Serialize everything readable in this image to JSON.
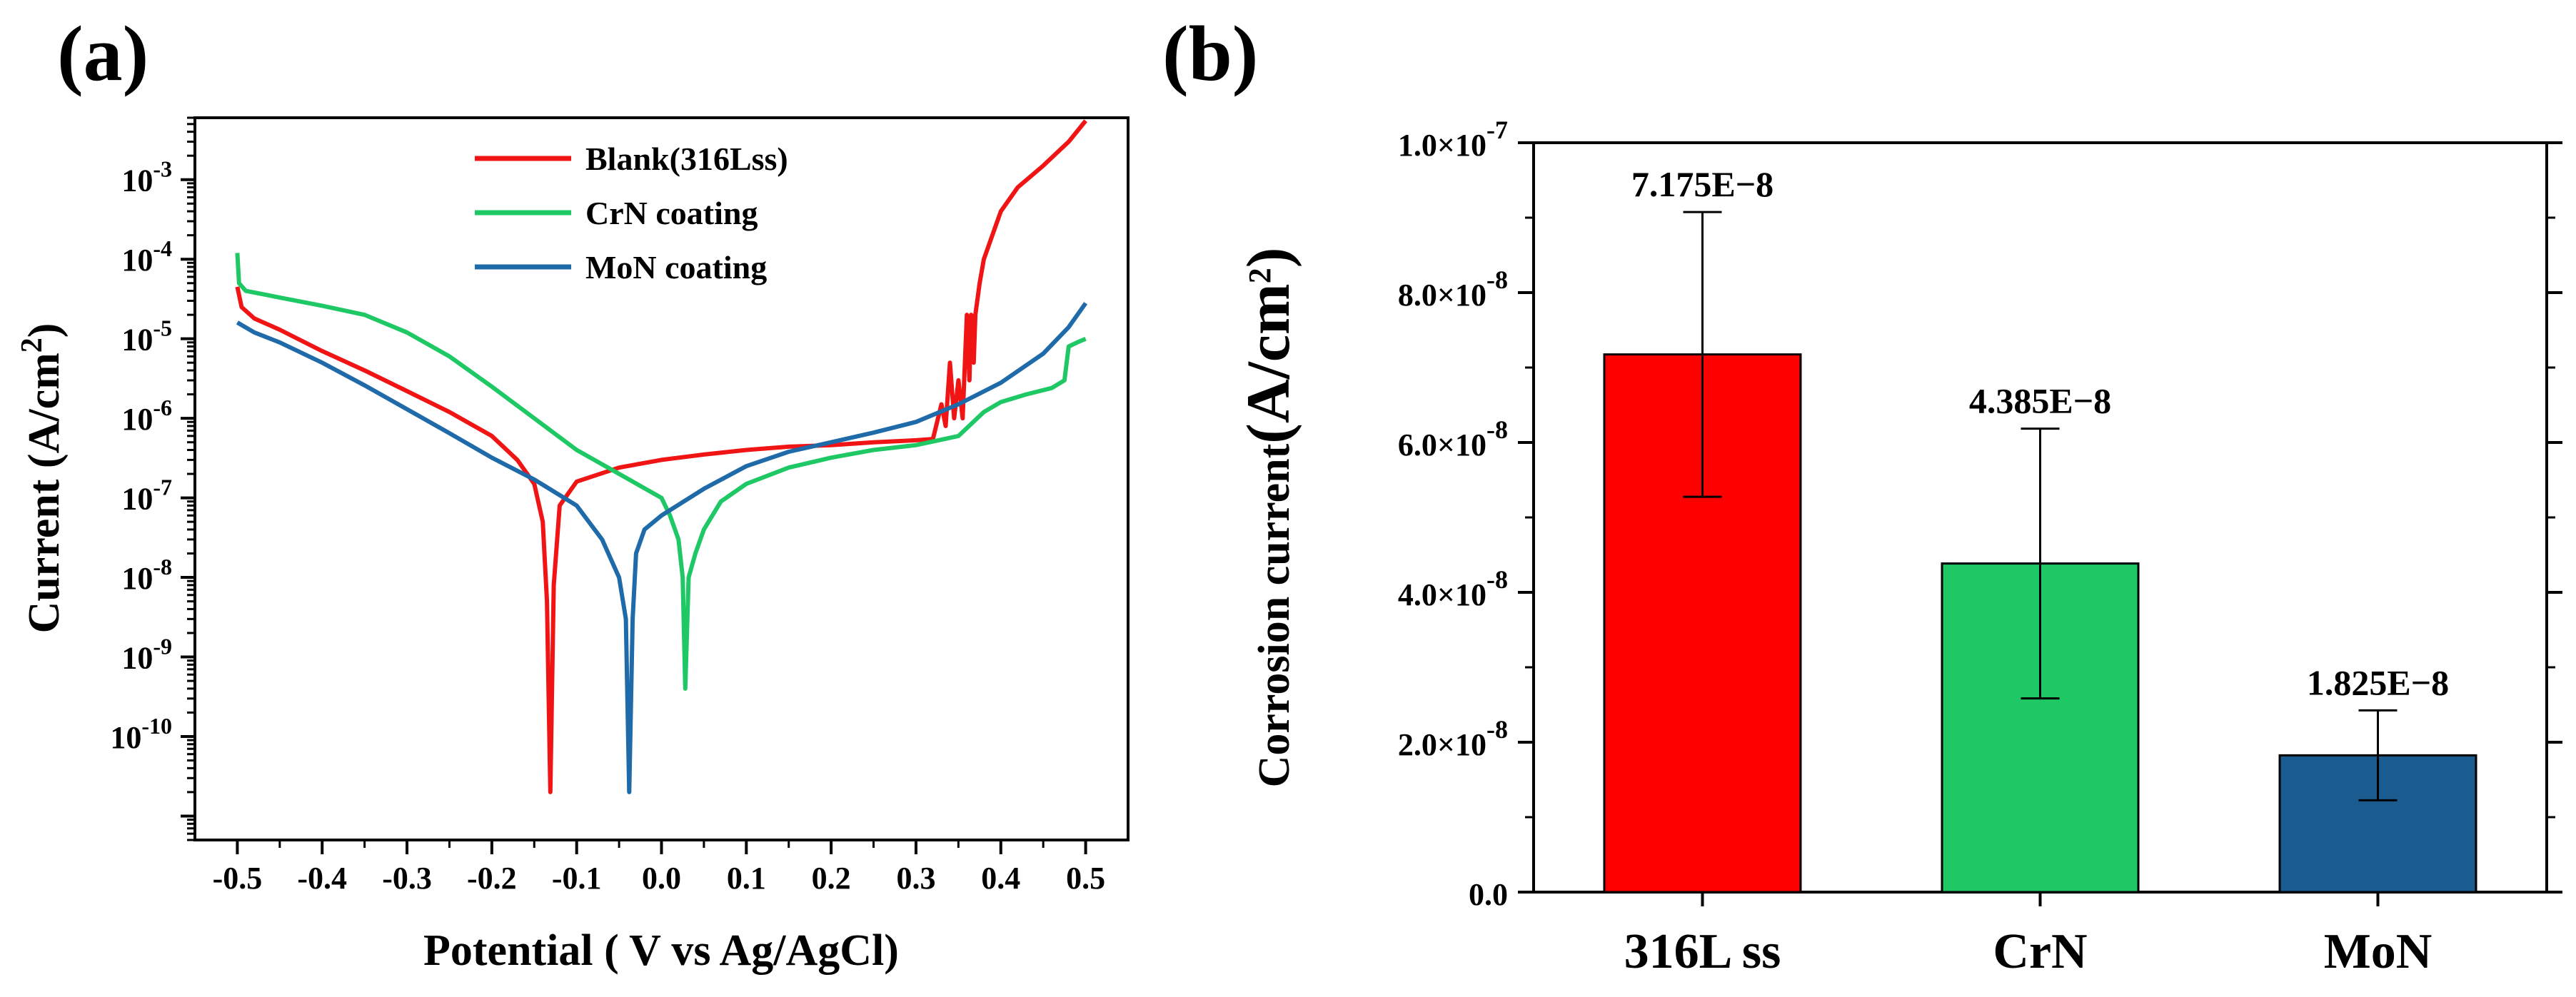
{
  "chart_data": [
    {
      "panel": "(a)",
      "type": "line",
      "xlabel": "Potential ( V vs Ag/AgCl)",
      "ylabel": "Current (A/cm",
      "ylabel_sup": "2",
      "ylabel_close": ")",
      "yscale": "log",
      "xlim": [
        -0.55,
        0.55
      ],
      "ylim": [
        5e-12,
        0.006
      ],
      "x_ticks": [
        -0.5,
        -0.4,
        -0.3,
        -0.2,
        -0.1,
        0.0,
        0.1,
        0.2,
        0.3,
        0.4,
        0.5
      ],
      "x_tick_labels": [
        "-0.5",
        "-0.4",
        "-0.3",
        "-0.2",
        "-0.1",
        "0.0",
        "0.1",
        "0.2",
        "0.3",
        "0.4",
        "0.5"
      ],
      "y_ticks": [
        {
          "exp": -10,
          "base": "10",
          "sup": "-10"
        },
        {
          "exp": -9,
          "base": "10",
          "sup": "-9"
        },
        {
          "exp": -8,
          "base": "10",
          "sup": "-8"
        },
        {
          "exp": -7,
          "base": "10",
          "sup": "-7"
        },
        {
          "exp": -6,
          "base": "10",
          "sup": "-6"
        },
        {
          "exp": -5,
          "base": "10",
          "sup": "-5"
        },
        {
          "exp": -4,
          "base": "10",
          "sup": "-4"
        },
        {
          "exp": -3,
          "base": "10",
          "sup": "-3"
        }
      ],
      "legend_position": "top-center",
      "series": [
        {
          "name": "Blank(316Lss)",
          "color": "#f01414",
          "points": [
            [
              -0.5,
              4.5e-05
            ],
            [
              -0.495,
              2.5e-05
            ],
            [
              -0.48,
              1.8e-05
            ],
            [
              -0.45,
              1.3e-05
            ],
            [
              -0.4,
              7e-06
            ],
            [
              -0.35,
              4e-06
            ],
            [
              -0.3,
              2.2e-06
            ],
            [
              -0.25,
              1.2e-06
            ],
            [
              -0.2,
              6e-07
            ],
            [
              -0.17,
              3e-07
            ],
            [
              -0.15,
              1.5e-07
            ],
            [
              -0.14,
              5e-08
            ],
            [
              -0.135,
              5e-09
            ],
            [
              -0.131,
              2e-11
            ],
            [
              -0.127,
              8e-09
            ],
            [
              -0.12,
              8e-08
            ],
            [
              -0.1,
              1.6e-07
            ],
            [
              -0.05,
              2.4e-07
            ],
            [
              0.0,
              3e-07
            ],
            [
              0.05,
              3.5e-07
            ],
            [
              0.1,
              4e-07
            ],
            [
              0.15,
              4.4e-07
            ],
            [
              0.2,
              4.6e-07
            ],
            [
              0.25,
              5e-07
            ],
            [
              0.3,
              5.3e-07
            ],
            [
              0.32,
              5.5e-07
            ],
            [
              0.33,
              1.5e-06
            ],
            [
              0.335,
              8e-07
            ],
            [
              0.34,
              5e-06
            ],
            [
              0.345,
              1e-06
            ],
            [
              0.35,
              3e-06
            ],
            [
              0.355,
              1e-06
            ],
            [
              0.36,
              2e-05
            ],
            [
              0.363,
              3e-06
            ],
            [
              0.365,
              2e-05
            ],
            [
              0.368,
              5e-06
            ],
            [
              0.37,
              2e-05
            ],
            [
              0.375,
              5e-05
            ],
            [
              0.38,
              0.0001
            ],
            [
              0.39,
              0.0002
            ],
            [
              0.4,
              0.0004
            ],
            [
              0.42,
              0.0008
            ],
            [
              0.45,
              0.0015
            ],
            [
              0.48,
              0.003
            ],
            [
              0.5,
              0.0055
            ]
          ]
        },
        {
          "name": "CrN coating",
          "color": "#1ec864",
          "points": [
            [
              -0.5,
              0.00012
            ],
            [
              -0.498,
              5e-05
            ],
            [
              -0.49,
              4e-05
            ],
            [
              -0.45,
              3.3e-05
            ],
            [
              -0.4,
              2.6e-05
            ],
            [
              -0.35,
              2e-05
            ],
            [
              -0.3,
              1.2e-05
            ],
            [
              -0.25,
              6e-06
            ],
            [
              -0.2,
              2.5e-06
            ],
            [
              -0.15,
              1e-06
            ],
            [
              -0.1,
              4e-07
            ],
            [
              -0.05,
              2e-07
            ],
            [
              0.0,
              1e-07
            ],
            [
              0.01,
              6e-08
            ],
            [
              0.02,
              3e-08
            ],
            [
              0.025,
              1e-08
            ],
            [
              0.028,
              4e-10
            ],
            [
              0.032,
              1e-08
            ],
            [
              0.04,
              2e-08
            ],
            [
              0.05,
              4e-08
            ],
            [
              0.07,
              9e-08
            ],
            [
              0.1,
              1.5e-07
            ],
            [
              0.15,
              2.4e-07
            ],
            [
              0.2,
              3.2e-07
            ],
            [
              0.25,
              4e-07
            ],
            [
              0.3,
              4.6e-07
            ],
            [
              0.35,
              6e-07
            ],
            [
              0.38,
              1.2e-06
            ],
            [
              0.4,
              1.6e-06
            ],
            [
              0.43,
              2e-06
            ],
            [
              0.46,
              2.4e-06
            ],
            [
              0.475,
              3e-06
            ],
            [
              0.48,
              8e-06
            ],
            [
              0.49,
              9e-06
            ],
            [
              0.5,
              1e-05
            ]
          ]
        },
        {
          "name": "MoN coating",
          "color": "#1f6aa8",
          "points": [
            [
              -0.5,
              1.6e-05
            ],
            [
              -0.48,
              1.2e-05
            ],
            [
              -0.45,
              9e-06
            ],
            [
              -0.4,
              5e-06
            ],
            [
              -0.35,
              2.6e-06
            ],
            [
              -0.3,
              1.3e-06
            ],
            [
              -0.25,
              6.5e-07
            ],
            [
              -0.2,
              3.2e-07
            ],
            [
              -0.15,
              1.7e-07
            ],
            [
              -0.1,
              8e-08
            ],
            [
              -0.07,
              3e-08
            ],
            [
              -0.05,
              1e-08
            ],
            [
              -0.042,
              3e-09
            ],
            [
              -0.038,
              2e-11
            ],
            [
              -0.034,
              3e-09
            ],
            [
              -0.03,
              2e-08
            ],
            [
              -0.02,
              4e-08
            ],
            [
              0.0,
              6e-08
            ],
            [
              0.05,
              1.3e-07
            ],
            [
              0.1,
              2.5e-07
            ],
            [
              0.15,
              3.8e-07
            ],
            [
              0.2,
              5e-07
            ],
            [
              0.25,
              6.6e-07
            ],
            [
              0.3,
              9e-07
            ],
            [
              0.35,
              1.5e-06
            ],
            [
              0.4,
              2.8e-06
            ],
            [
              0.45,
              6.5e-06
            ],
            [
              0.48,
              1.4e-05
            ],
            [
              0.5,
              2.8e-05
            ]
          ]
        }
      ]
    },
    {
      "panel": "(b)",
      "type": "bar",
      "xlabel": "",
      "ylabel": "Corrosion current",
      "ylabel_unit": "(A/cm",
      "ylabel_sup": "2",
      "ylabel_close": ")",
      "ylim": [
        0,
        1e-07
      ],
      "y_ticks": [
        {
          "value": 0,
          "base": "0.0",
          "sup": ""
        },
        {
          "value": 2e-08,
          "base": "2.0×10",
          "sup": "-8"
        },
        {
          "value": 4e-08,
          "base": "4.0×10",
          "sup": "-8"
        },
        {
          "value": 6e-08,
          "base": "6.0×10",
          "sup": "-8"
        },
        {
          "value": 8e-08,
          "base": "8.0×10",
          "sup": "-8"
        },
        {
          "value": 1e-07,
          "base": "1.0×10",
          "sup": "-7"
        }
      ],
      "categories": [
        "316L ss",
        "CrN",
        "MoN"
      ],
      "values": [
        7.175e-08,
        4.385e-08,
        1.825e-08
      ],
      "errors": [
        1.9e-08,
        1.8e-08,
        6e-09
      ],
      "data_labels": [
        "7.175E−8",
        "4.385E−8",
        "1.825E−8"
      ],
      "colors": [
        "#ff0000",
        "#1ec864",
        "#1a5c8f"
      ]
    }
  ]
}
